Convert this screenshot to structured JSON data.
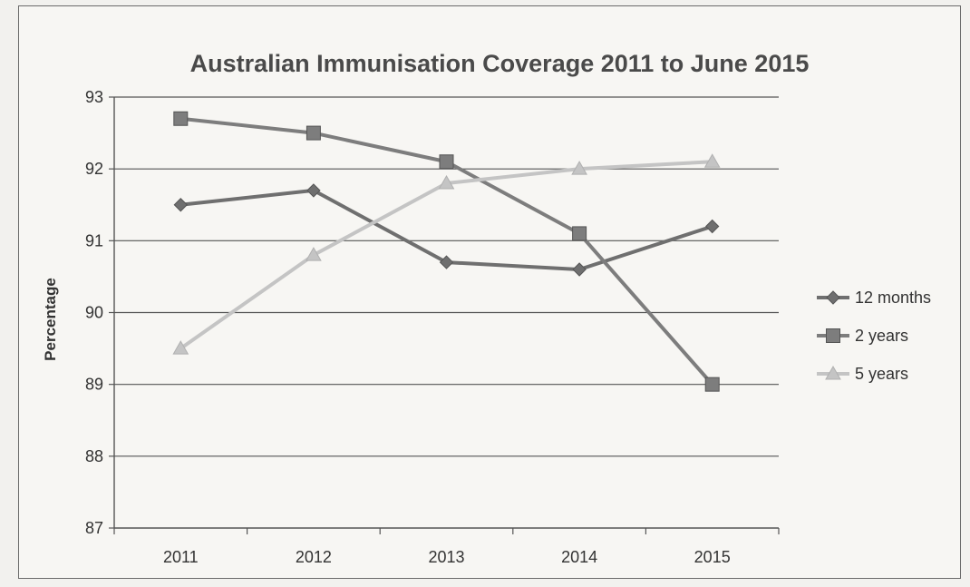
{
  "chart_data": {
    "type": "line",
    "title": "Australian Immunisation Coverage 2011 to June 2015",
    "xlabel": "",
    "ylabel": "Percentage",
    "categories": [
      "2011",
      "2012",
      "2013",
      "2014",
      "2015"
    ],
    "ylim": [
      87,
      93
    ],
    "yticks": [
      87,
      88,
      89,
      90,
      91,
      92,
      93
    ],
    "grid": "horizontal",
    "legend_position": "right",
    "series": [
      {
        "name": "12 months",
        "marker": "diamond",
        "color": "#6f6f6f",
        "values": [
          91.5,
          91.7,
          90.7,
          90.6,
          91.2
        ]
      },
      {
        "name": "2 years",
        "marker": "square",
        "color": "#7d7d7d",
        "values": [
          92.7,
          92.5,
          92.1,
          91.1,
          89.0
        ]
      },
      {
        "name": "5 years",
        "marker": "triangle",
        "color": "#c4c4c4",
        "values": [
          89.5,
          90.8,
          91.8,
          92.0,
          92.1
        ]
      }
    ]
  }
}
